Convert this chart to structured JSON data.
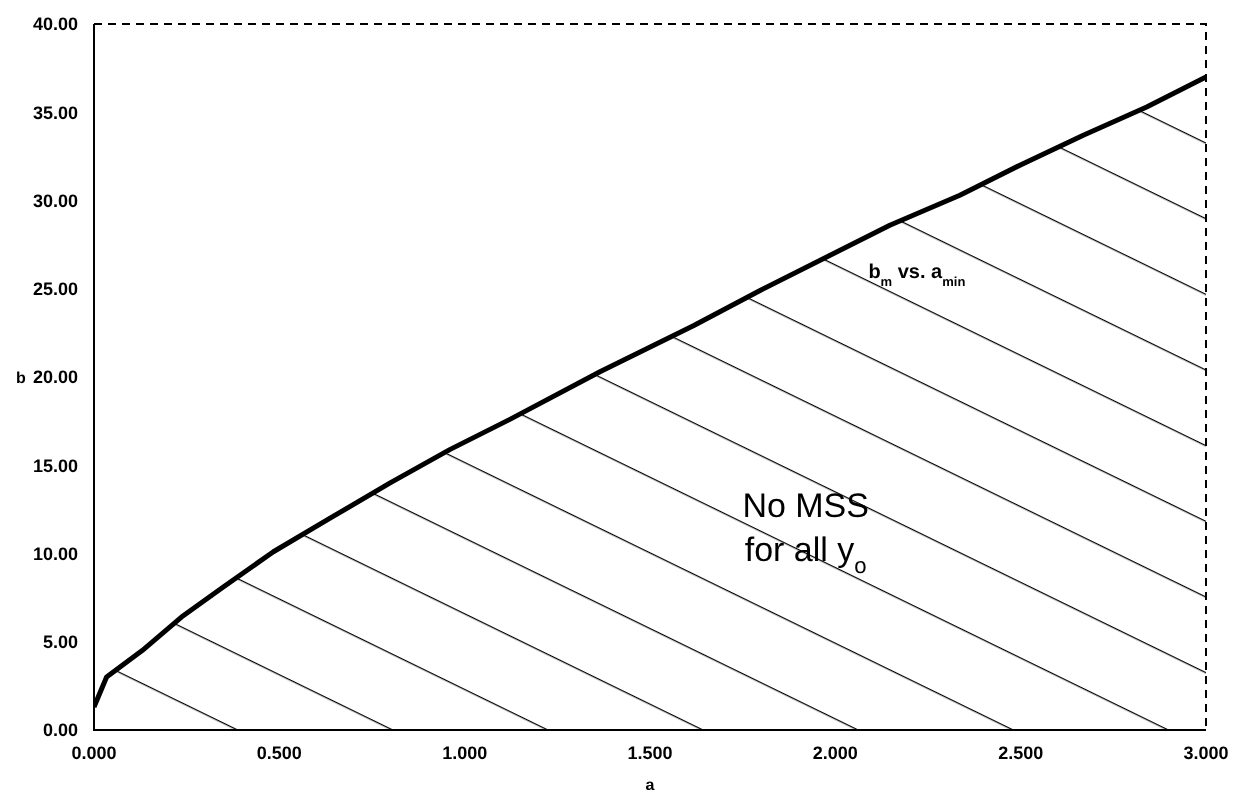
{
  "chart_data": {
    "type": "area",
    "xlabel": "a",
    "ylabel": "b",
    "x": [
      0,
      0.034,
      0.13,
      0.236,
      0.345,
      0.484,
      0.637,
      0.799,
      0.961,
      1.122,
      1.365,
      1.617,
      1.797,
      2.147,
      2.336,
      2.498,
      2.669,
      2.84,
      3.0
    ],
    "series": [
      {
        "color": "#000000",
        "values": [
          1.3,
          3.0,
          4.5,
          6.4,
          8.05,
          10.1,
          12.0,
          14.0,
          15.9,
          17.6,
          20.3,
          22.9,
          24.9,
          28.6,
          30.3,
          32.0,
          33.7,
          35.3,
          37.0
        ]
      }
    ],
    "xlim": [
      0,
      3
    ],
    "ylim": [
      0,
      40
    ],
    "xticks": [
      {
        "value": 0,
        "label": "0.000"
      },
      {
        "value": 0.5,
        "label": "0.500"
      },
      {
        "value": 1,
        "label": "1.000"
      },
      {
        "value": 1.5,
        "label": "1.500"
      },
      {
        "value": 2,
        "label": "2.000"
      },
      {
        "value": 2.5,
        "label": "2.500"
      },
      {
        "value": 3,
        "label": "3.000"
      }
    ],
    "yticks": [
      {
        "value": 0,
        "label": "0.00"
      },
      {
        "value": 5,
        "label": "5.00"
      },
      {
        "value": 10,
        "label": "10.00"
      },
      {
        "value": 15,
        "label": "15.00"
      },
      {
        "value": 20,
        "label": "20.00"
      },
      {
        "value": 25,
        "label": "25.00"
      },
      {
        "value": 30,
        "label": "30.00"
      },
      {
        "value": 35,
        "label": "35.00"
      },
      {
        "value": 40,
        "label": "40.00"
      }
    ],
    "annotations": [
      "b$_{m}$ vs. a$_{min}$",
      "No MSS\nfor all y$_{o}$"
    ],
    "grid": false,
    "legend": false,
    "marker": "none"
  }
}
